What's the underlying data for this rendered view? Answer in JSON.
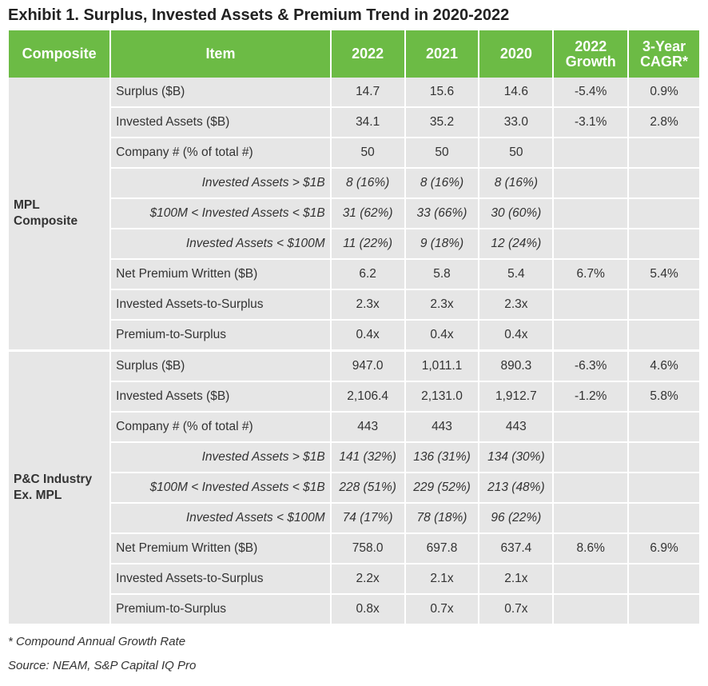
{
  "title": "Exhibit 1. Surplus, Invested Assets & Premium Trend in 2020-2022",
  "header": {
    "composite": "Composite",
    "item": "Item",
    "y2022": "2022",
    "y2021": "2021",
    "y2020": "2020",
    "growth_l1": "2022",
    "growth_l2": "Growth",
    "cagr_l1": "3-Year",
    "cagr_l2": "CAGR*"
  },
  "groups": [
    {
      "composite_l1": "MPL",
      "composite_l2": "Composite",
      "rows": [
        {
          "item": "Surplus ($B)",
          "v2022": "14.7",
          "v2021": "15.6",
          "v2020": "14.6",
          "growth": "-5.4%",
          "cagr": "0.9%"
        },
        {
          "item": "Invested Assets ($B)",
          "v2022": "34.1",
          "v2021": "35.2",
          "v2020": "33.0",
          "growth": "-3.1%",
          "cagr": "2.8%"
        },
        {
          "item": "Company # (% of total #)",
          "v2022": "50",
          "v2021": "50",
          "v2020": "50",
          "growth": "",
          "cagr": ""
        },
        {
          "item": "Invested Assets > $1B",
          "v2022": "8 (16%)",
          "v2021": "8 (16%)",
          "v2020": "8 (16%)",
          "growth": "",
          "cagr": ""
        },
        {
          "item": "$100M < Invested Assets < $1B",
          "v2022": "31 (62%)",
          "v2021": "33 (66%)",
          "v2020": "30 (60%)",
          "growth": "",
          "cagr": ""
        },
        {
          "item": "Invested Assets < $100M",
          "v2022": "11 (22%)",
          "v2021": "9 (18%)",
          "v2020": "12 (24%)",
          "growth": "",
          "cagr": ""
        },
        {
          "item": "Net Premium Written ($B)",
          "v2022": "6.2",
          "v2021": "5.8",
          "v2020": "5.4",
          "growth": "6.7%",
          "cagr": "5.4%"
        },
        {
          "item": "Invested Assets-to-Surplus",
          "v2022": "2.3x",
          "v2021": "2.3x",
          "v2020": "2.3x",
          "growth": "",
          "cagr": ""
        },
        {
          "item": "Premium-to-Surplus",
          "v2022": "0.4x",
          "v2021": "0.4x",
          "v2020": "0.4x",
          "growth": "",
          "cagr": ""
        }
      ]
    },
    {
      "composite_l1": "P&C Industry",
      "composite_l2": "Ex. MPL",
      "rows": [
        {
          "item": "Surplus ($B)",
          "v2022": "947.0",
          "v2021": "1,011.1",
          "v2020": "890.3",
          "growth": "-6.3%",
          "cagr": "4.6%"
        },
        {
          "item": "Invested Assets ($B)",
          "v2022": "2,106.4",
          "v2021": "2,131.0",
          "v2020": "1,912.7",
          "growth": "-1.2%",
          "cagr": "5.8%"
        },
        {
          "item": "Company # (% of total #)",
          "v2022": "443",
          "v2021": "443",
          "v2020": "443",
          "growth": "",
          "cagr": ""
        },
        {
          "item": "Invested Assets > $1B",
          "v2022": "141 (32%)",
          "v2021": "136 (31%)",
          "v2020": "134 (30%)",
          "growth": "",
          "cagr": ""
        },
        {
          "item": "$100M < Invested Assets < $1B",
          "v2022": "228 (51%)",
          "v2021": "229 (52%)",
          "v2020": "213 (48%)",
          "growth": "",
          "cagr": ""
        },
        {
          "item": "Invested Assets < $100M",
          "v2022": "74 (17%)",
          "v2021": "78 (18%)",
          "v2020": "96 (22%)",
          "growth": "",
          "cagr": ""
        },
        {
          "item": "Net Premium Written ($B)",
          "v2022": "758.0",
          "v2021": "697.8",
          "v2020": "637.4",
          "growth": "8.6%",
          "cagr": "6.9%"
        },
        {
          "item": "Invested Assets-to-Surplus",
          "v2022": "2.2x",
          "v2021": "2.1x",
          "v2020": "2.1x",
          "growth": "",
          "cagr": ""
        },
        {
          "item": "Premium-to-Surplus",
          "v2022": "0.8x",
          "v2021": "0.7x",
          "v2020": "0.7x",
          "growth": "",
          "cagr": ""
        }
      ]
    }
  ],
  "footnote": "* Compound Annual Growth Rate",
  "source": "Source: NEAM, S&P Capital IQ Pro",
  "colors": {
    "header_bg": "#6cbb45",
    "header_text": "#ffffff",
    "cell_bg": "#e6e6e6"
  }
}
